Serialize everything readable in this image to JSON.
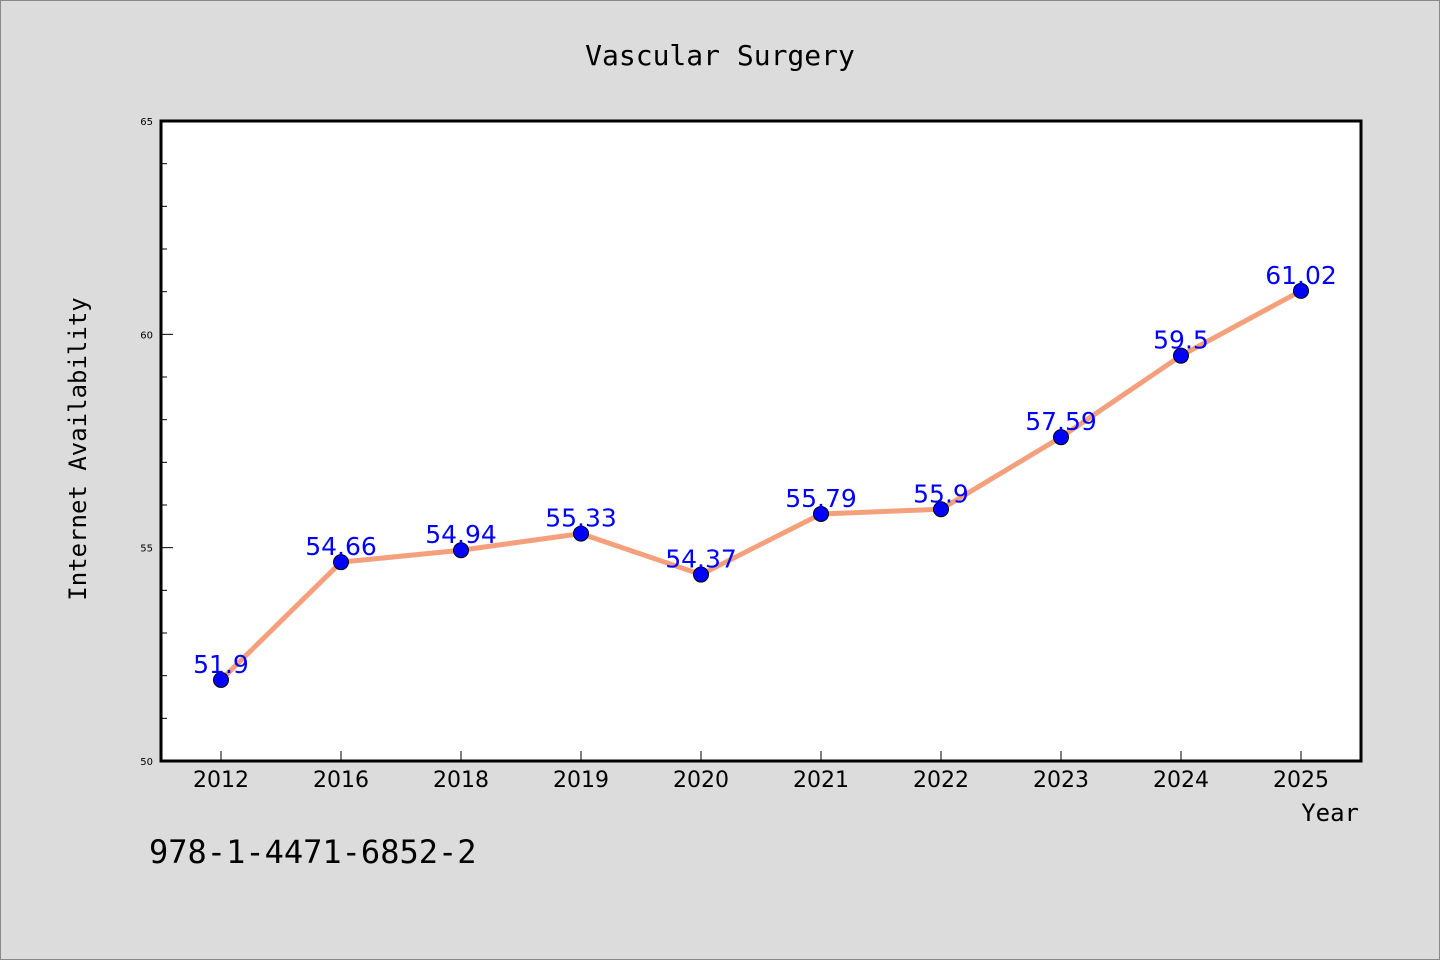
{
  "chart_data": {
    "type": "line",
    "title": "Vascular Surgery",
    "xlabel": "Year",
    "ylabel": "Internet Availability",
    "categories": [
      "2012",
      "2016",
      "2018",
      "2019",
      "2020",
      "2021",
      "2022",
      "2023",
      "2024",
      "2025"
    ],
    "series": [
      {
        "values": [
          51.9,
          54.66,
          54.94,
          55.33,
          54.37,
          55.79,
          55.9,
          57.59,
          59.5,
          61.02
        ],
        "data_labels": [
          "51.9",
          "54.66",
          "54.94",
          "55.33",
          "54.37",
          "55.79",
          "55.9",
          "57.59",
          "59.5",
          "61.02"
        ],
        "line_color": "#f4a07c",
        "marker_color": "#0000ff"
      }
    ],
    "ylim": [
      50,
      65
    ],
    "yticks": [
      "50",
      "55",
      "60",
      "65"
    ],
    "grid": false,
    "legend": "none"
  },
  "footer": {
    "isbn": "978-1-4471-6852-2"
  }
}
